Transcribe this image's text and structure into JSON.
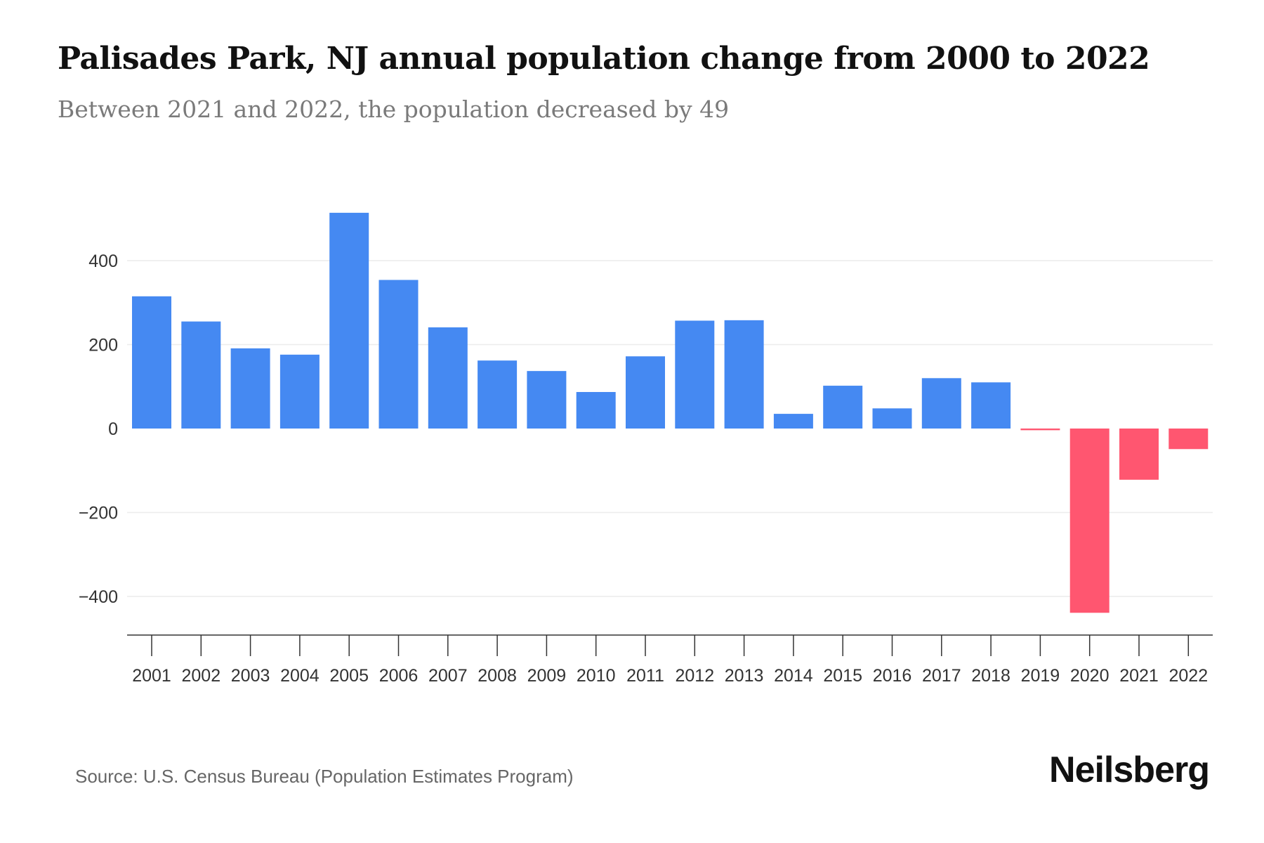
{
  "header": {
    "title": "Palisades Park, NJ annual population change from 2000 to 2022",
    "subtitle": "Between 2021 and 2022, the population decreased by 49"
  },
  "footer": {
    "source": "Source: U.S. Census Bureau (Population Estimates Program)",
    "logo": "Neilsberg"
  },
  "chart_data": {
    "type": "bar",
    "title": "Palisades Park, NJ annual population change from 2000 to 2022",
    "xlabel": "",
    "ylabel": "",
    "categories": [
      "2001",
      "2002",
      "2003",
      "2004",
      "2005",
      "2006",
      "2007",
      "2008",
      "2009",
      "2010",
      "2011",
      "2012",
      "2013",
      "2014",
      "2015",
      "2016",
      "2017",
      "2018",
      "2019",
      "2020",
      "2021",
      "2022"
    ],
    "values": [
      315,
      255,
      191,
      176,
      514,
      354,
      241,
      162,
      137,
      87,
      172,
      257,
      258,
      35,
      102,
      48,
      120,
      110,
      -4,
      -439,
      -122,
      -49
    ],
    "ylim": [
      -492,
      560
    ],
    "yticks": [
      400,
      200,
      0,
      -200,
      -400
    ],
    "ytick_labels": [
      "400",
      "200",
      "0",
      "−200",
      "−400"
    ],
    "grid": true,
    "colors": {
      "positive": "#4589f2",
      "negative": "#ff5670"
    }
  }
}
